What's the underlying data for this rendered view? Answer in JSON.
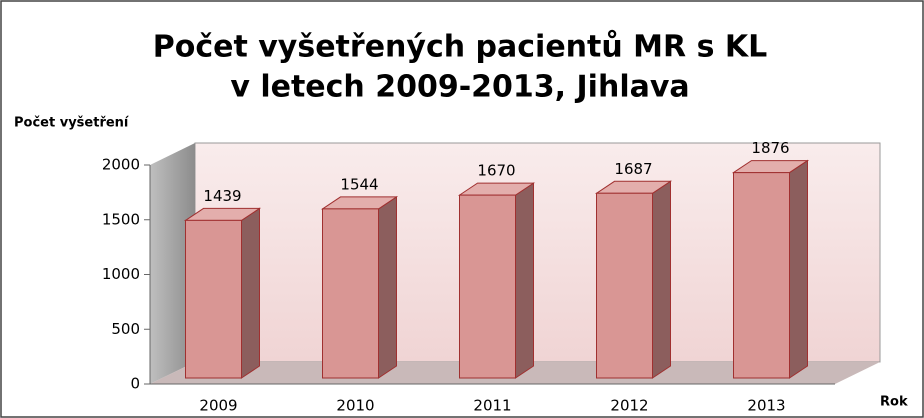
{
  "chart_data": {
    "type": "bar",
    "title": [
      "Počet vyšetřených pacientů MR s KL",
      "v letech 2009-2013, Jihlava"
    ],
    "ylabel": "Počet vyšetření",
    "xlabel": "Rok",
    "categories": [
      "2009",
      "2010",
      "2011",
      "2012",
      "2013"
    ],
    "values": [
      1439,
      1544,
      1670,
      1687,
      1876
    ],
    "color": "#d99694",
    "ylim": [
      0,
      2000
    ],
    "yticks": [
      0,
      500,
      1000,
      1500,
      2000
    ],
    "grid": false
  }
}
